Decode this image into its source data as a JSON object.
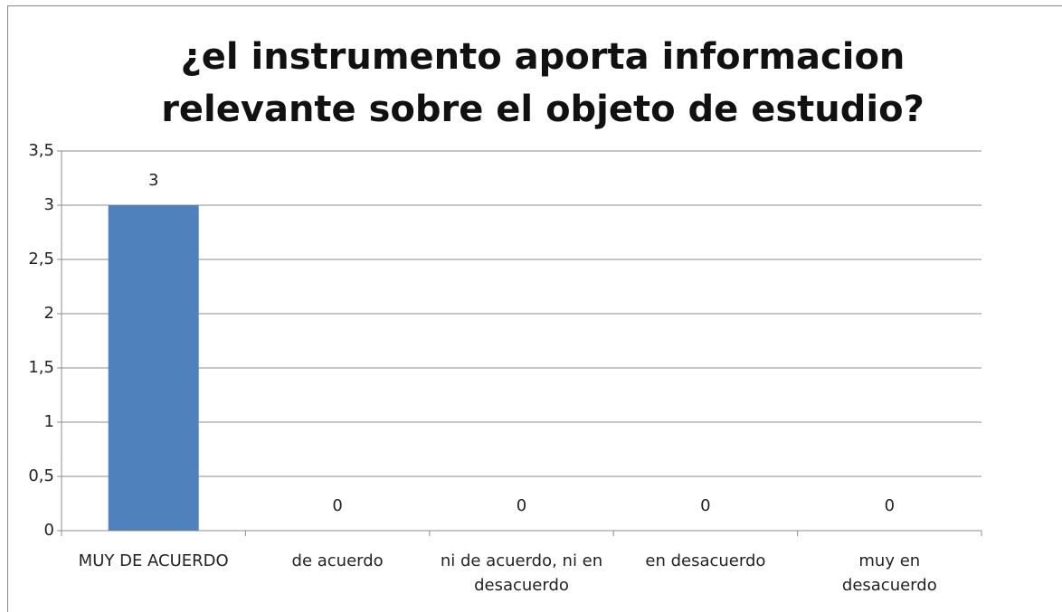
{
  "chart_data": {
    "type": "bar",
    "title": "¿el instrumento aporta informacion relevante sobre el objeto de estudio?",
    "categories": [
      "MUY DE ACUERDO",
      "de acuerdo",
      "ni de acuerdo, ni en desacuerdo",
      "en desacuerdo",
      "muy en desacuerdo"
    ],
    "values": [
      3,
      0,
      0,
      0,
      0
    ],
    "color": "#4f81bd",
    "ylim": [
      0,
      3.5
    ],
    "yticks": [
      0,
      {
        "value": 0.5,
        "label": "0,5"
      },
      1,
      {
        "value": 1.5,
        "label": "1,5"
      },
      2,
      {
        "value": 2.5,
        "label": "2,5"
      },
      3,
      {
        "value": 3.5,
        "label": "3,5"
      }
    ],
    "grid": true
  }
}
